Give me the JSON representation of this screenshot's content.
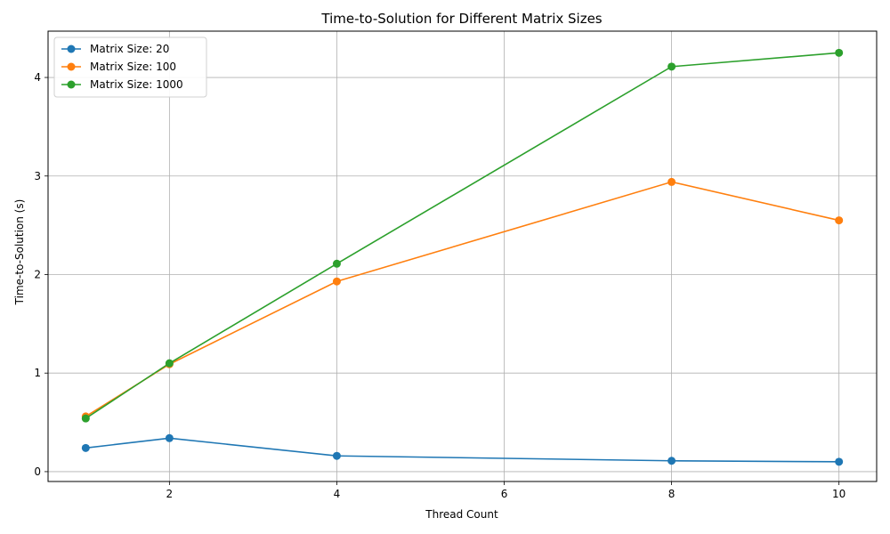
{
  "chart_data": {
    "type": "line",
    "title": "Time-to-Solution for Different Matrix Sizes",
    "xlabel": "Thread Count",
    "ylabel": "Time-to-Solution (s)",
    "xlim": [
      0.55,
      10.45
    ],
    "ylim": [
      -0.1,
      4.47
    ],
    "xticks": [
      2,
      4,
      6,
      8,
      10
    ],
    "yticks": [
      0,
      1,
      2,
      3,
      4
    ],
    "grid": true,
    "legend_position": "top-left",
    "x": [
      1,
      2,
      4,
      8,
      10
    ],
    "series": [
      {
        "name": "Matrix Size: 20",
        "color": "#1f77b4",
        "values": [
          0.24,
          0.34,
          0.16,
          0.11,
          0.1
        ]
      },
      {
        "name": "Matrix Size: 100",
        "color": "#ff7f0e",
        "values": [
          0.56,
          1.09,
          1.93,
          2.94,
          2.55
        ]
      },
      {
        "name": "Matrix Size: 1000",
        "color": "#2ca02c",
        "values": [
          0.54,
          1.1,
          2.11,
          4.11,
          4.25
        ]
      }
    ]
  }
}
